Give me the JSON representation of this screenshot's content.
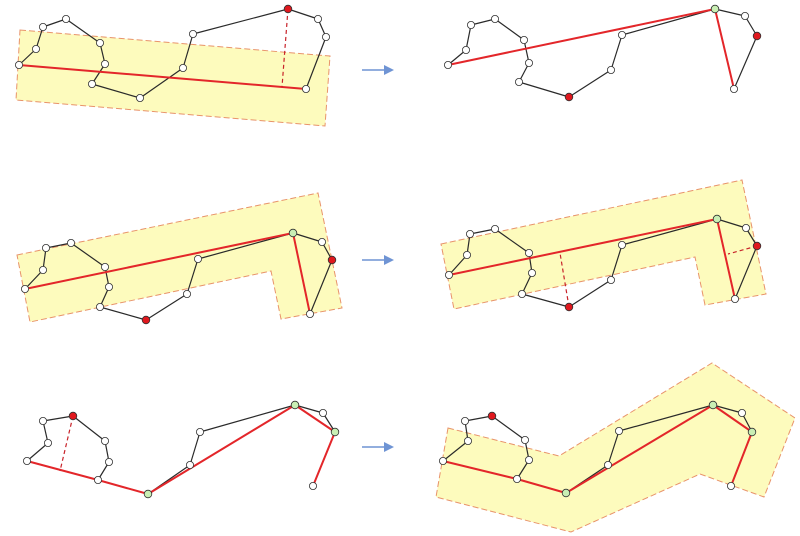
{
  "title": "",
  "colors": {
    "buffer_fill": "#fdfbbd",
    "buffer_stroke": "#e8936a",
    "polyline": "#2a2a2a",
    "approximation": "#e3262a",
    "distance_line": "#c8232a",
    "vertex": "#ffffff",
    "farthest_vertex": "#e0181e",
    "kept_vertex": "#c9efb4",
    "arrow": "#6f94d4"
  },
  "legend_shapes": [
    "vertex-point",
    "farthest-point",
    "kept-point",
    "buffer-region",
    "arrow-icon"
  ],
  "steps": [
    {
      "from": "step-1-left",
      "to": "step-1-right"
    },
    {
      "from": "step-2-left",
      "to": "step-2-right"
    },
    {
      "from": "step-3-left",
      "to": "step-3-right"
    }
  ]
}
